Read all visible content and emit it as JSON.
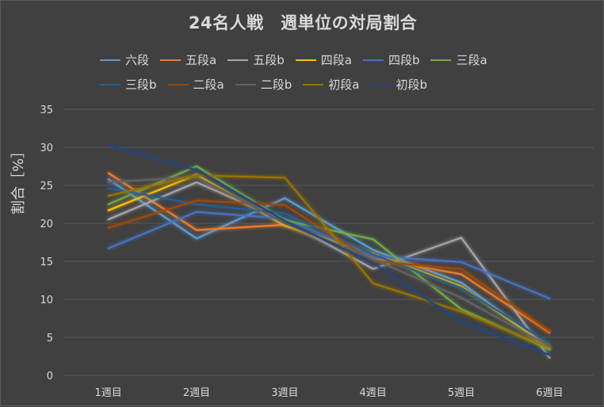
{
  "chart_data": {
    "type": "line",
    "title": "24名人戦　週単位の対局割合",
    "ylabel": "割合［%］",
    "xlabel": "",
    "categories": [
      "1週目",
      "2週目",
      "3週目",
      "4週目",
      "5週目",
      "6週目"
    ],
    "ylim": [
      0,
      35
    ],
    "yticks": [
      0,
      5,
      10,
      15,
      20,
      25,
      30,
      35
    ],
    "grid": true,
    "legend_position": "top",
    "series": [
      {
        "name": "六段",
        "color": "#5b9bd5",
        "values": [
          25.8,
          18.0,
          23.3,
          16.5,
          12.2,
          3.5
        ]
      },
      {
        "name": "五段a",
        "color": "#ed7d31",
        "values": [
          26.6,
          19.1,
          19.8,
          15.4,
          13.3,
          5.6
        ]
      },
      {
        "name": "五段b",
        "color": "#a5a5a5",
        "values": [
          20.5,
          25.4,
          20.3,
          14.0,
          18.1,
          2.3
        ]
      },
      {
        "name": "四段a",
        "color": "#ffc000",
        "values": [
          21.7,
          26.4,
          19.7,
          16.0,
          11.7,
          3.6
        ]
      },
      {
        "name": "四段b",
        "color": "#4472c4",
        "values": [
          16.7,
          21.5,
          20.6,
          15.7,
          14.9,
          10.1
        ]
      },
      {
        "name": "三段a",
        "color": "#70ad47",
        "values": [
          22.5,
          27.5,
          20.4,
          17.9,
          8.7,
          3.4
        ]
      },
      {
        "name": "三段b",
        "color": "#255e91",
        "values": [
          24.6,
          22.5,
          21.3,
          15.9,
          11.5,
          4.2
        ]
      },
      {
        "name": "二段a",
        "color": "#9e480e",
        "values": [
          19.4,
          23.0,
          22.4,
          15.0,
          14.0,
          5.8
        ]
      },
      {
        "name": "二段b",
        "color": "#636363",
        "values": [
          25.4,
          26.1,
          20.0,
          15.3,
          10.2,
          3.8
        ]
      },
      {
        "name": "初段a",
        "color": "#997300",
        "values": [
          23.6,
          26.3,
          26.0,
          12.1,
          8.4,
          3.6
        ]
      },
      {
        "name": "初段b",
        "color": "#264478",
        "values": [
          30.3,
          27.0,
          20.3,
          14.8,
          7.0,
          2.7
        ]
      }
    ]
  }
}
